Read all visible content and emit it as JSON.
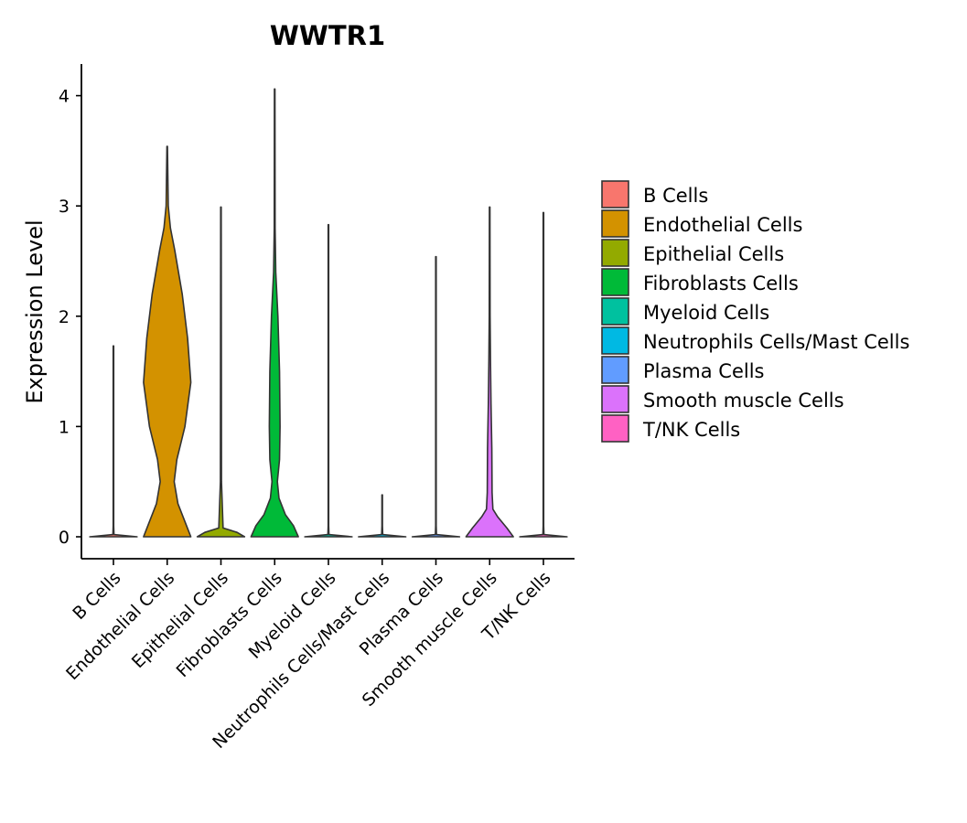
{
  "chart_data": {
    "type": "violin",
    "title": "WWTR1",
    "xlabel": "",
    "ylabel": "Expression Level",
    "ylim": [
      -0.2,
      4.27
    ],
    "yticks": [
      0,
      1,
      2,
      3,
      4
    ],
    "grid": false,
    "legend_position": "right",
    "categories": [
      "B Cells",
      "Endothelial Cells",
      "Epithelial Cells",
      "Fibroblasts Cells",
      "Myeloid Cells",
      "Neutrophils Cells/Mast Cells",
      "Plasma Cells",
      "Smooth muscle Cells",
      "T/NK Cells"
    ],
    "colors": [
      "#F8766D",
      "#D39200",
      "#93AA00",
      "#00BA38",
      "#00C19F",
      "#00B9E3",
      "#619CFF",
      "#DB72FB",
      "#FF61C3"
    ],
    "max_values": [
      1.73,
      3.54,
      2.99,
      4.06,
      2.83,
      0.38,
      2.54,
      2.99,
      2.94
    ],
    "series": [
      {
        "name": "B Cells",
        "profile": [
          [
            0,
            0.44
          ],
          [
            0.02,
            0.01
          ],
          [
            0.1,
            0.005
          ],
          [
            1.73,
            0.005
          ]
        ]
      },
      {
        "name": "Endothelial Cells",
        "profile": [
          [
            0,
            0.44
          ],
          [
            0.1,
            0.36
          ],
          [
            0.3,
            0.2
          ],
          [
            0.5,
            0.13
          ],
          [
            0.7,
            0.18
          ],
          [
            1.0,
            0.33
          ],
          [
            1.4,
            0.44
          ],
          [
            1.8,
            0.38
          ],
          [
            2.2,
            0.28
          ],
          [
            2.6,
            0.14
          ],
          [
            2.8,
            0.06
          ],
          [
            3.0,
            0.02
          ],
          [
            3.54,
            0.005
          ]
        ]
      },
      {
        "name": "Epithelial Cells",
        "profile": [
          [
            0,
            0.44
          ],
          [
            0.04,
            0.3
          ],
          [
            0.08,
            0.04
          ],
          [
            0.5,
            0.01
          ],
          [
            2.99,
            0.005
          ]
        ]
      },
      {
        "name": "Fibroblasts Cells",
        "profile": [
          [
            0,
            0.44
          ],
          [
            0.1,
            0.35
          ],
          [
            0.2,
            0.2
          ],
          [
            0.35,
            0.08
          ],
          [
            0.5,
            0.05
          ],
          [
            0.7,
            0.09
          ],
          [
            1.0,
            0.1
          ],
          [
            1.5,
            0.09
          ],
          [
            2.0,
            0.06
          ],
          [
            2.4,
            0.02
          ],
          [
            2.8,
            0.008
          ],
          [
            4.06,
            0.005
          ]
        ]
      },
      {
        "name": "Myeloid Cells",
        "profile": [
          [
            0,
            0.44
          ],
          [
            0.02,
            0.01
          ],
          [
            0.1,
            0.005
          ],
          [
            2.83,
            0.005
          ]
        ]
      },
      {
        "name": "Neutrophils Cells/Mast Cells",
        "profile": [
          [
            0,
            0.44
          ],
          [
            0.02,
            0.01
          ],
          [
            0.1,
            0.005
          ],
          [
            0.38,
            0.005
          ]
        ]
      },
      {
        "name": "Plasma Cells",
        "profile": [
          [
            0,
            0.44
          ],
          [
            0.02,
            0.01
          ],
          [
            0.1,
            0.005
          ],
          [
            2.54,
            0.005
          ]
        ]
      },
      {
        "name": "Smooth muscle Cells",
        "profile": [
          [
            0,
            0.44
          ],
          [
            0.08,
            0.32
          ],
          [
            0.18,
            0.15
          ],
          [
            0.25,
            0.06
          ],
          [
            0.4,
            0.045
          ],
          [
            0.8,
            0.04
          ],
          [
            1.2,
            0.025
          ],
          [
            1.6,
            0.015
          ],
          [
            2.0,
            0.008
          ],
          [
            2.99,
            0.005
          ]
        ]
      },
      {
        "name": "T/NK Cells",
        "profile": [
          [
            0,
            0.44
          ],
          [
            0.02,
            0.01
          ],
          [
            0.1,
            0.005
          ],
          [
            2.94,
            0.005
          ]
        ]
      }
    ]
  }
}
